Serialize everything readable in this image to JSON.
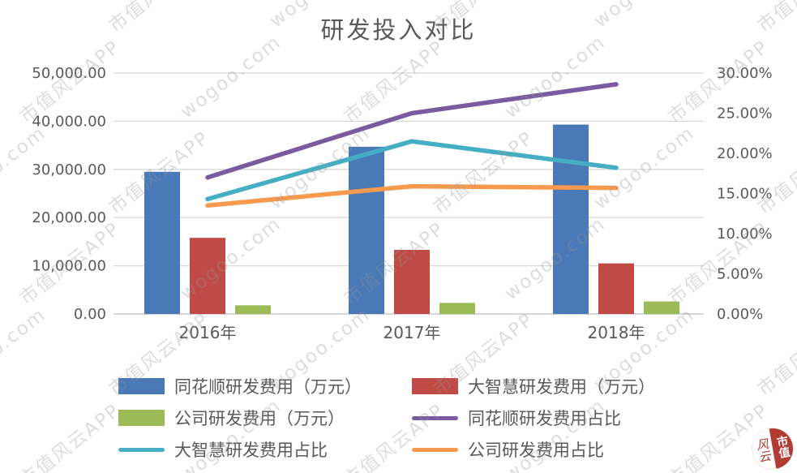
{
  "title": "研发投入对比",
  "watermark": {
    "texts": [
      "wogoo.com",
      "市值风云APP"
    ]
  },
  "seal": {
    "left_text": "风云",
    "right_text": "市值"
  },
  "legend": [
    {
      "label": "同花顺研发费用（万元）",
      "type": "bar",
      "color": "#4a79b8"
    },
    {
      "label": "大智慧研发费用（万元）",
      "type": "bar",
      "color": "#c04a45"
    },
    {
      "label": "公司研发费用（万元）",
      "type": "bar",
      "color": "#9cba56"
    },
    {
      "label": "同花顺研发费用占比",
      "type": "line",
      "color": "#7a5ba1"
    },
    {
      "label": "大智慧研发费用占比",
      "type": "line",
      "color": "#45aec4"
    },
    {
      "label": "公司研发费用占比",
      "type": "line",
      "color": "#f79a4d"
    }
  ],
  "chart_data": {
    "type": "bar+line dual-axis",
    "title": "研发投入对比",
    "categories": [
      "2016年",
      "2017年",
      "2018年"
    ],
    "bar_series": [
      {
        "name": "同花顺研发费用（万元）",
        "color": "#4a79b8",
        "values": [
          29500,
          34700,
          39300
        ]
      },
      {
        "name": "大智慧研发费用（万元）",
        "color": "#c04a45",
        "values": [
          15800,
          13300,
          10500
        ]
      },
      {
        "name": "公司研发费用（万元）",
        "color": "#9cba56",
        "values": [
          1800,
          2300,
          2600
        ]
      }
    ],
    "line_series": [
      {
        "name": "同花顺研发费用占比",
        "color": "#7a5ba1",
        "values": [
          17.0,
          25.0,
          28.6
        ]
      },
      {
        "name": "大智慧研发费用占比",
        "color": "#45aec4",
        "values": [
          14.3,
          21.5,
          18.2
        ]
      },
      {
        "name": "公司研发费用占比",
        "color": "#f79a4d",
        "values": [
          13.5,
          15.9,
          15.7
        ]
      }
    ],
    "left_axis": {
      "min": 0,
      "max": 50000,
      "step": 10000,
      "tick_labels": [
        "0.00",
        "10,000.00",
        "20,000.00",
        "30,000.00",
        "40,000.00",
        "50,000.00"
      ]
    },
    "right_axis": {
      "min": 0,
      "max": 30,
      "step": 5,
      "tick_labels": [
        "0.00%",
        "5.00%",
        "10.00%",
        "15.00%",
        "20.00%",
        "25.00%",
        "30.00%"
      ]
    },
    "grid": true,
    "legend_position": "bottom"
  }
}
